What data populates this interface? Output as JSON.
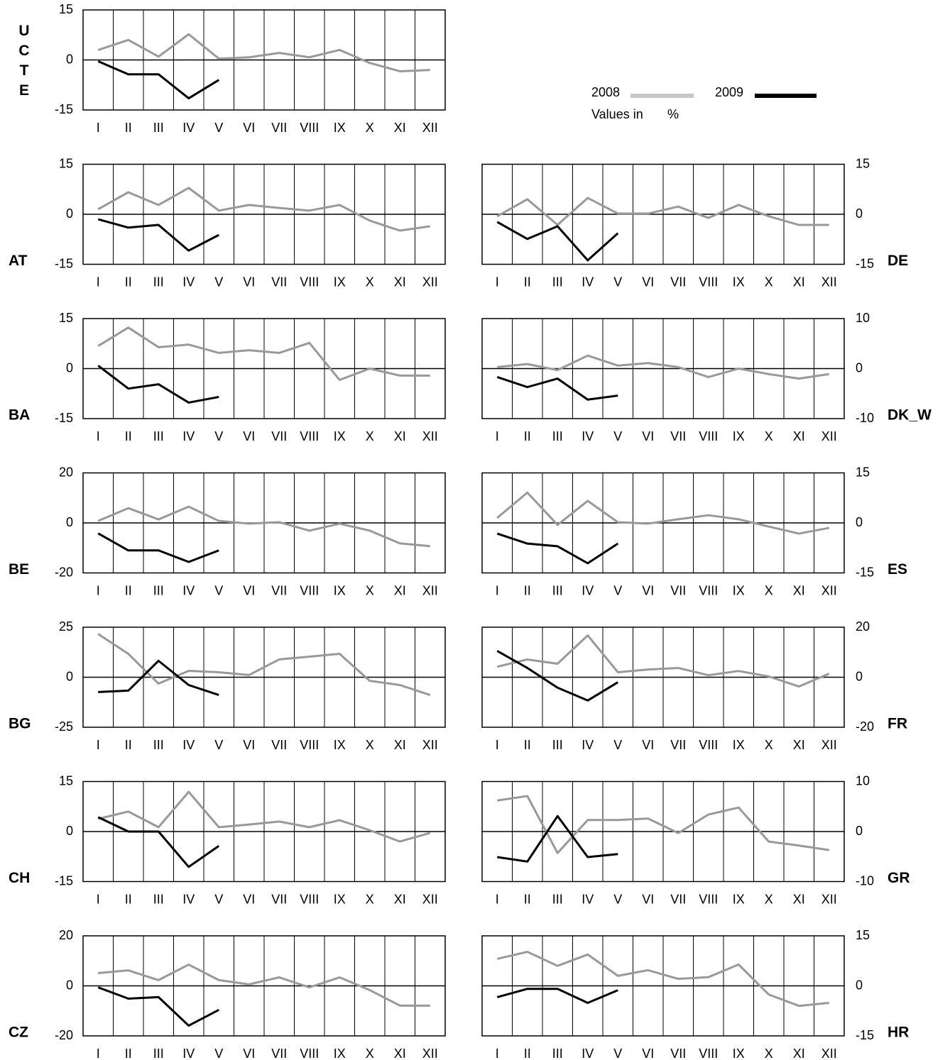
{
  "legend": {
    "note": "Values in",
    "unit": "%"
  },
  "chart_data": [
    {
      "type": "line",
      "title": "UCTE",
      "title_vertical": true,
      "categories": [
        "I",
        "II",
        "III",
        "IV",
        "V",
        "VI",
        "VII",
        "VIII",
        "IX",
        "X",
        "XI",
        "XII"
      ],
      "ylim": [
        -15,
        15
      ],
      "yticks": [
        -15,
        0,
        15
      ],
      "series": [
        {
          "name": "2008",
          "color": "#999999",
          "values": [
            3,
            6,
            1,
            7.7,
            0.4,
            0.8,
            2.1,
            0.8,
            3,
            -0.9,
            -3.4,
            -3
          ]
        },
        {
          "name": "2009",
          "color": "#000000",
          "values": [
            -0.4,
            -4.3,
            -4.3,
            -11.5,
            -6,
            null,
            null,
            null,
            null,
            null,
            null,
            null
          ]
        }
      ]
    },
    {
      "type": "line",
      "title": "AT",
      "categories": [
        "I",
        "II",
        "III",
        "IV",
        "V",
        "VI",
        "VII",
        "VIII",
        "IX",
        "X",
        "XI",
        "XII"
      ],
      "ylim": [
        -15,
        15
      ],
      "yticks": [
        -15,
        0,
        15
      ],
      "series": [
        {
          "name": "2008",
          "color": "#999999",
          "values": [
            1.5,
            6.6,
            2.8,
            7.9,
            1.1,
            2.8,
            1.9,
            1.1,
            2.8,
            -1.9,
            -4.9,
            -3.6
          ]
        },
        {
          "name": "2009",
          "color": "#000000",
          "values": [
            -1.5,
            -4,
            -3.2,
            -10.9,
            -6.2,
            null,
            null,
            null,
            null,
            null,
            null,
            null
          ]
        }
      ]
    },
    {
      "type": "line",
      "title": "DE",
      "categories": [
        "I",
        "II",
        "III",
        "IV",
        "V",
        "VI",
        "VII",
        "VIII",
        "IX",
        "X",
        "XI",
        "XII"
      ],
      "ylim": [
        -15,
        15
      ],
      "yticks": [
        -15,
        0,
        15
      ],
      "series": [
        {
          "name": "2008",
          "color": "#999999",
          "values": [
            -0.6,
            4.5,
            -3.2,
            4.9,
            0.2,
            0.2,
            2.3,
            -1.1,
            2.8,
            -0.6,
            -3.2,
            -3.2
          ]
        },
        {
          "name": "2009",
          "color": "#000000",
          "values": [
            -2.3,
            -7.4,
            -3.6,
            -13.8,
            -5.7,
            null,
            null,
            null,
            null,
            null,
            null,
            null
          ]
        }
      ]
    },
    {
      "type": "line",
      "title": "BA",
      "categories": [
        "I",
        "II",
        "III",
        "IV",
        "V",
        "VI",
        "VII",
        "VIII",
        "IX",
        "X",
        "XI",
        "XII"
      ],
      "ylim": [
        -15,
        15
      ],
      "yticks": [
        -15,
        0,
        15
      ],
      "series": [
        {
          "name": "2008",
          "color": "#999999",
          "values": [
            6.8,
            12.3,
            6.4,
            7.2,
            4.7,
            5.5,
            4.7,
            7.7,
            -3.4,
            0,
            -2.1,
            -2.1
          ]
        },
        {
          "name": "2009",
          "color": "#000000",
          "values": [
            0.9,
            -6,
            -4.7,
            -10.2,
            -8.5,
            null,
            null,
            null,
            null,
            null,
            null,
            null
          ]
        }
      ]
    },
    {
      "type": "line",
      "title": "DK_W",
      "categories": [
        "I",
        "II",
        "III",
        "IV",
        "V",
        "VI",
        "VII",
        "VIII",
        "IX",
        "X",
        "XI",
        "XII"
      ],
      "ylim": [
        -10,
        10
      ],
      "yticks": [
        -10,
        0,
        10
      ],
      "series": [
        {
          "name": "2008",
          "color": "#999999",
          "values": [
            0.3,
            0.9,
            -0.3,
            2.6,
            0.6,
            1.1,
            0.3,
            -1.7,
            0,
            -1.1,
            -2,
            -1.1
          ]
        },
        {
          "name": "2009",
          "color": "#000000",
          "values": [
            -1.7,
            -3.7,
            -2,
            -6.2,
            -5.4,
            null,
            null,
            null,
            null,
            null,
            null,
            null
          ]
        }
      ]
    },
    {
      "type": "line",
      "title": "BE",
      "categories": [
        "I",
        "II",
        "III",
        "IV",
        "V",
        "VI",
        "VII",
        "VIII",
        "IX",
        "X",
        "XI",
        "XII"
      ],
      "ylim": [
        -20,
        20
      ],
      "yticks": [
        -20,
        0,
        20
      ],
      "series": [
        {
          "name": "2008",
          "color": "#999999",
          "values": [
            0.8,
            5.9,
            1.4,
            6.5,
            0.8,
            -0.3,
            0.3,
            -3.1,
            -0.3,
            -3.1,
            -8.2,
            -9.3
          ]
        },
        {
          "name": "2009",
          "color": "#000000",
          "values": [
            -4.2,
            -11,
            -11,
            -15.6,
            -11,
            null,
            null,
            null,
            null,
            null,
            null,
            null
          ]
        }
      ]
    },
    {
      "type": "line",
      "title": "ES",
      "categories": [
        "I",
        "II",
        "III",
        "IV",
        "V",
        "VI",
        "VII",
        "VIII",
        "IX",
        "X",
        "XI",
        "XII"
      ],
      "ylim": [
        -15,
        15
      ],
      "yticks": [
        -15,
        0,
        15
      ],
      "series": [
        {
          "name": "2008",
          "color": "#999999",
          "values": [
            1.5,
            9.1,
            -0.6,
            6.6,
            0.2,
            -0.2,
            1.1,
            2.3,
            1.1,
            -1.1,
            -3.2,
            -1.5
          ]
        },
        {
          "name": "2009",
          "color": "#000000",
          "values": [
            -3.2,
            -6.2,
            -7,
            -12.1,
            -6.2,
            null,
            null,
            null,
            null,
            null,
            null,
            null
          ]
        }
      ]
    },
    {
      "type": "line",
      "title": "BG",
      "categories": [
        "I",
        "II",
        "III",
        "IV",
        "V",
        "VI",
        "VII",
        "VIII",
        "IX",
        "X",
        "XI",
        "XII"
      ],
      "ylim": [
        -25,
        25
      ],
      "yticks": [
        -25,
        0,
        25
      ],
      "series": [
        {
          "name": "2008",
          "color": "#999999",
          "values": [
            21.6,
            11.7,
            -3.2,
            3.2,
            2.5,
            1.1,
            8.9,
            10.3,
            11.7,
            -1.8,
            -3.9,
            -8.9
          ]
        },
        {
          "name": "2009",
          "color": "#000000",
          "values": [
            -7.4,
            -6.7,
            8.2,
            -3.9,
            -8.9,
            null,
            null,
            null,
            null,
            null,
            null,
            null
          ]
        }
      ]
    },
    {
      "type": "line",
      "title": "FR",
      "categories": [
        "I",
        "II",
        "III",
        "IV",
        "V",
        "VI",
        "VII",
        "VIII",
        "IX",
        "X",
        "XI",
        "XII"
      ],
      "ylim": [
        -20,
        20
      ],
      "yticks": [
        -20,
        0,
        20
      ],
      "series": [
        {
          "name": "2008",
          "color": "#999999",
          "values": [
            4.2,
            7.1,
            5.4,
            16.7,
            2,
            3.1,
            3.7,
            0.8,
            2.5,
            0.3,
            -3.7,
            1.4
          ]
        },
        {
          "name": "2009",
          "color": "#000000",
          "values": [
            10.5,
            3.7,
            -4.2,
            -9.3,
            -2,
            null,
            null,
            null,
            null,
            null,
            null,
            null
          ]
        }
      ]
    },
    {
      "type": "line",
      "title": "CH",
      "categories": [
        "I",
        "II",
        "III",
        "IV",
        "V",
        "VI",
        "VII",
        "VIII",
        "IX",
        "X",
        "XI",
        "XII"
      ],
      "ylim": [
        -15,
        15
      ],
      "yticks": [
        -15,
        0,
        15
      ],
      "series": [
        {
          "name": "2008",
          "color": "#999999",
          "values": [
            3.8,
            6,
            1.3,
            11.9,
            1.3,
            2.1,
            3,
            1.3,
            3.4,
            0.4,
            -3,
            -0.4
          ]
        },
        {
          "name": "2009",
          "color": "#000000",
          "values": [
            4.3,
            0,
            0,
            -10.6,
            -4.3,
            null,
            null,
            null,
            null,
            null,
            null,
            null
          ]
        }
      ]
    },
    {
      "type": "line",
      "title": "GR",
      "categories": [
        "I",
        "II",
        "III",
        "IV",
        "V",
        "VI",
        "VII",
        "VIII",
        "IX",
        "X",
        "XI",
        "XII"
      ],
      "ylim": [
        -10,
        10
      ],
      "yticks": [
        -10,
        0,
        10
      ],
      "series": [
        {
          "name": "2008",
          "color": "#999999",
          "values": [
            6.2,
            7.1,
            -4.3,
            2.3,
            2.3,
            2.6,
            -0.3,
            3.4,
            4.8,
            -2,
            -2.8,
            -3.7
          ]
        },
        {
          "name": "2009",
          "color": "#000000",
          "values": [
            -5.1,
            -6,
            3.1,
            -5.1,
            -4.5,
            null,
            null,
            null,
            null,
            null,
            null,
            null
          ]
        }
      ]
    },
    {
      "type": "line",
      "title": "CZ",
      "categories": [
        "I",
        "II",
        "III",
        "IV",
        "V",
        "VI",
        "VII",
        "VIII",
        "IX",
        "X",
        "XI",
        "XII"
      ],
      "ylim": [
        -20,
        20
      ],
      "yticks": [
        -20,
        0,
        20
      ],
      "series": [
        {
          "name": "2008",
          "color": "#999999",
          "values": [
            5.1,
            6.2,
            2.3,
            8.5,
            2.3,
            0.6,
            3.4,
            -0.6,
            3.4,
            -1.7,
            -7.9,
            -7.9
          ]
        },
        {
          "name": "2009",
          "color": "#000000",
          "values": [
            -0.6,
            -5.1,
            -4.5,
            -15.9,
            -9.6,
            null,
            null,
            null,
            null,
            null,
            null,
            null
          ]
        }
      ]
    },
    {
      "type": "line",
      "title": "HR",
      "categories": [
        "I",
        "II",
        "III",
        "IV",
        "V",
        "VI",
        "VII",
        "VIII",
        "IX",
        "X",
        "XI",
        "XII"
      ],
      "ylim": [
        -15,
        15
      ],
      "yticks": [
        -15,
        0,
        15
      ],
      "series": [
        {
          "name": "2008",
          "color": "#999999",
          "values": [
            8.1,
            10.2,
            6,
            9.4,
            3,
            4.7,
            2.1,
            2.6,
            6.4,
            -2.6,
            -6,
            -5.1
          ]
        },
        {
          "name": "2009",
          "color": "#000000",
          "values": [
            -3.4,
            -0.9,
            -0.9,
            -5.1,
            -1.3,
            null,
            null,
            null,
            null,
            null,
            null,
            null
          ]
        }
      ]
    }
  ]
}
